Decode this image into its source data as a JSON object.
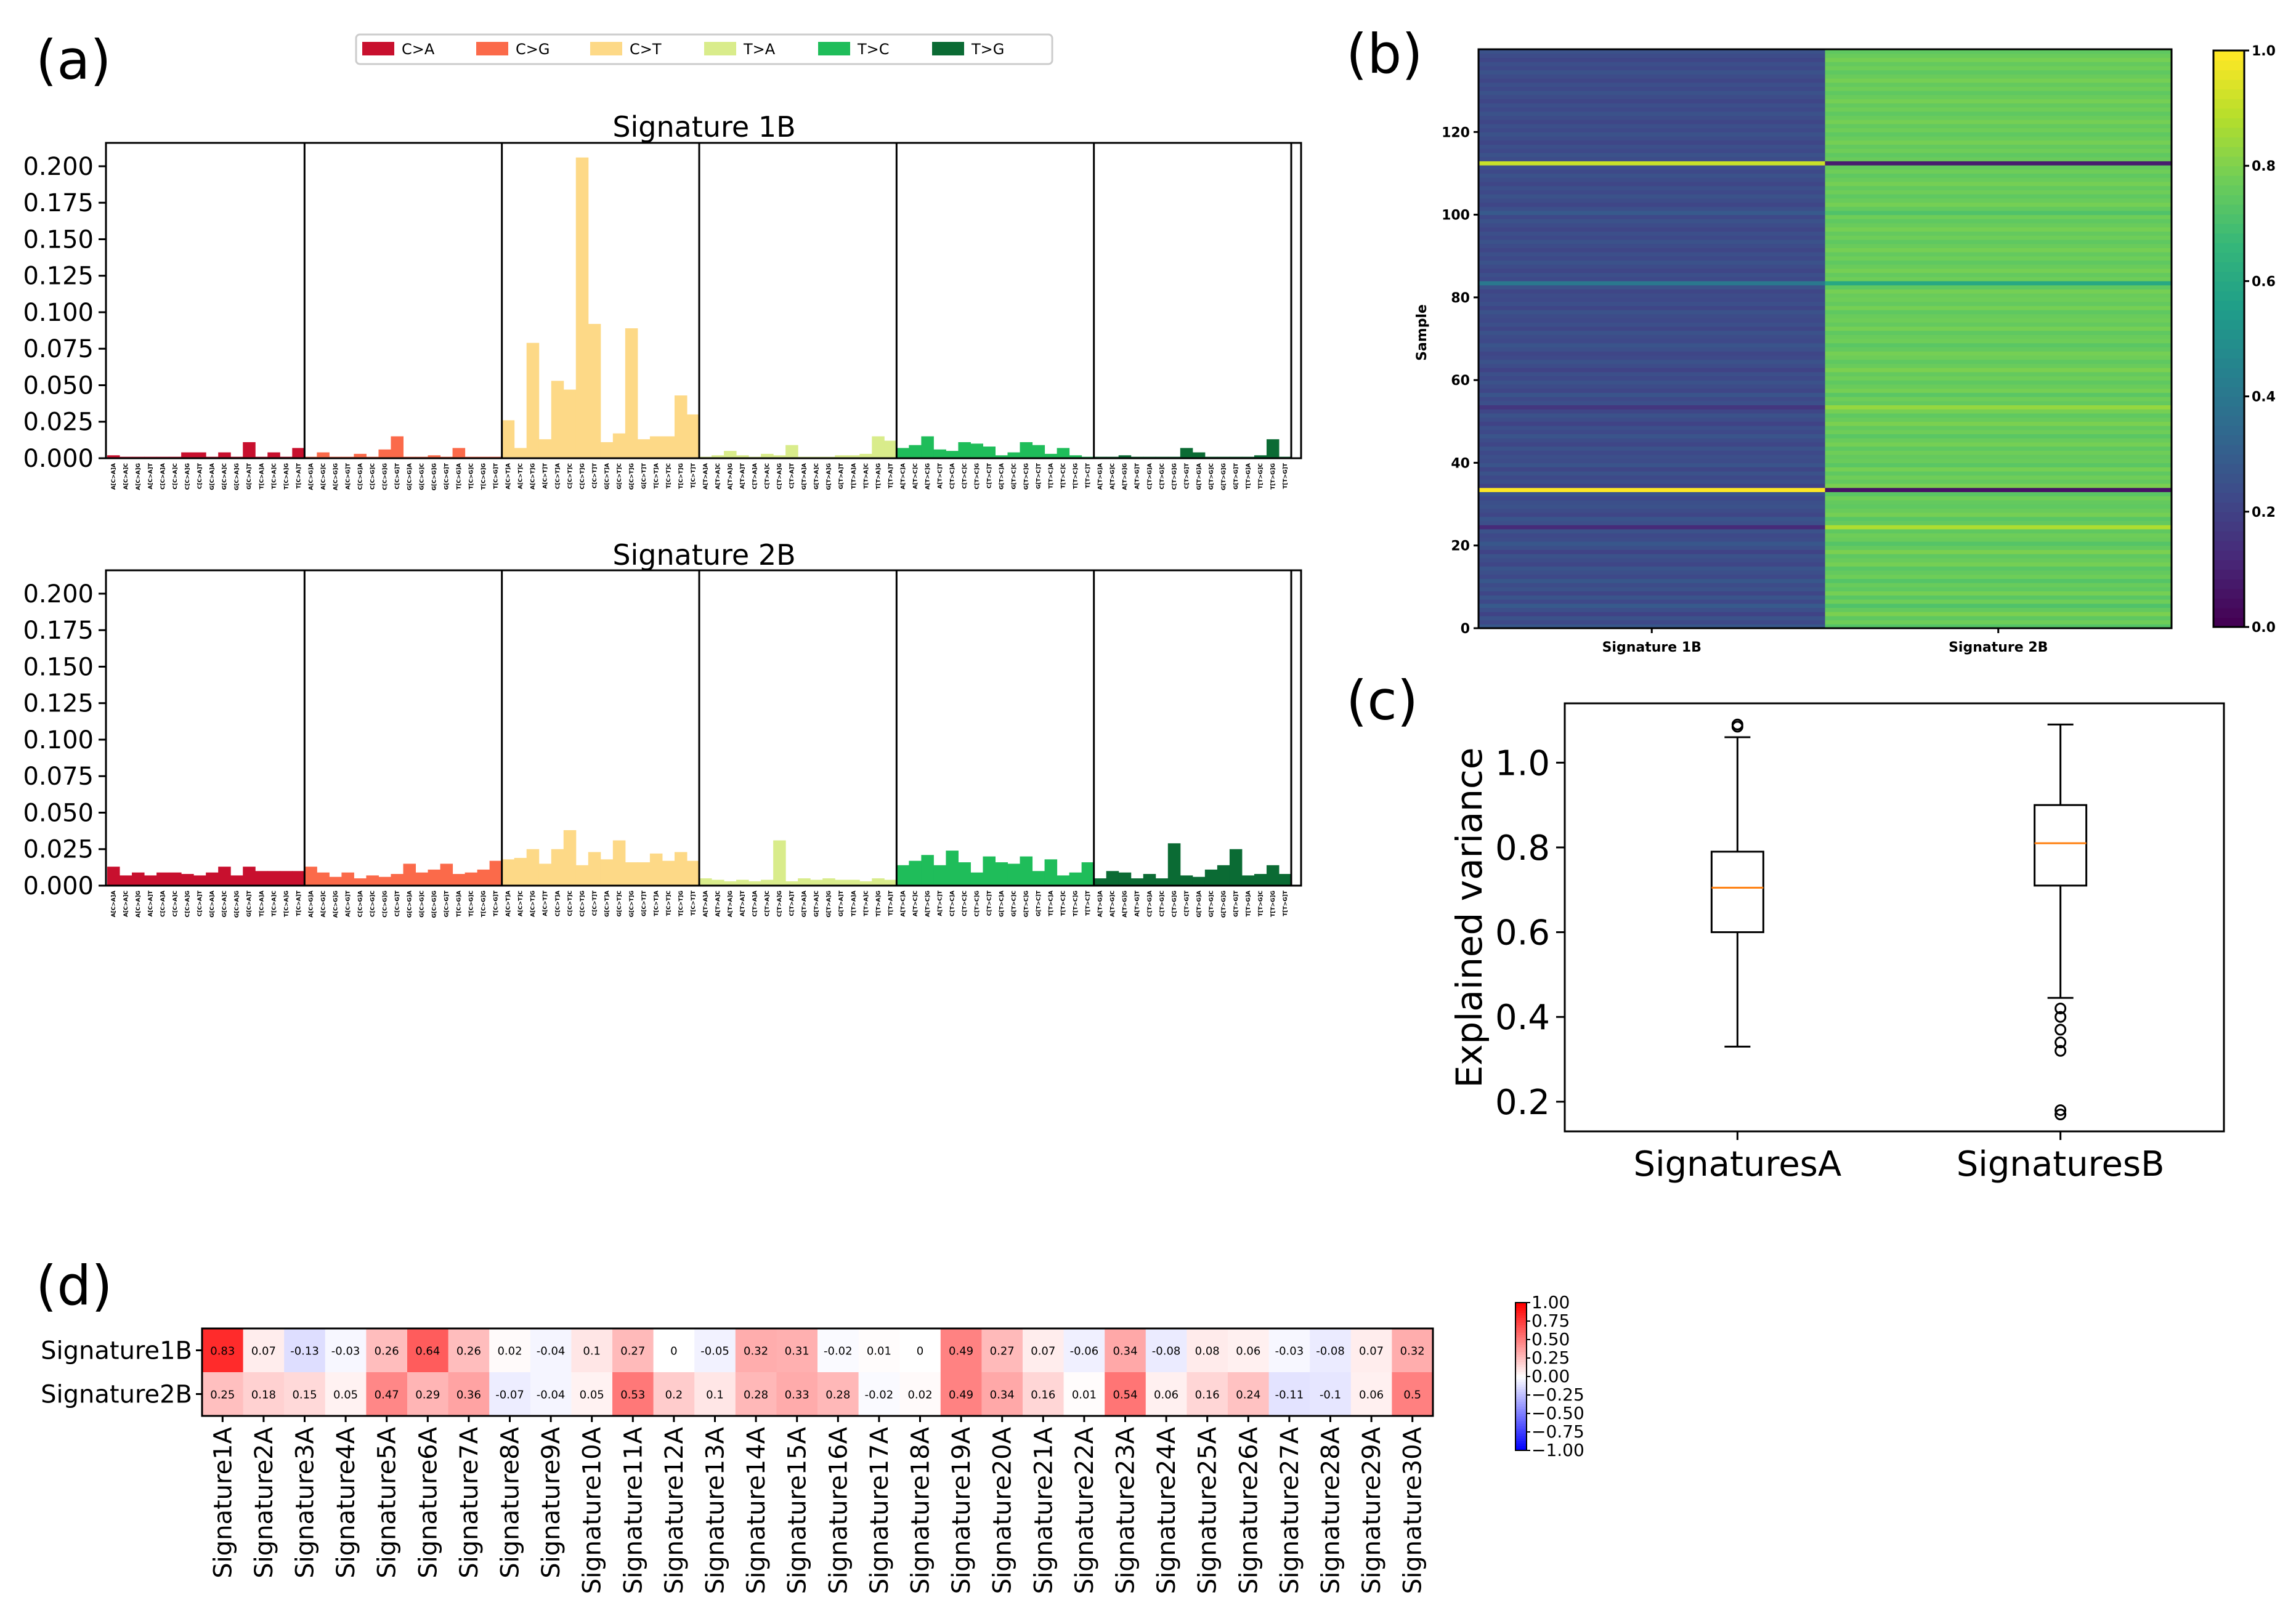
{
  "panels": {
    "a": "(a)",
    "b": "(b)",
    "c": "(c)",
    "d": "(d)"
  },
  "colors": {
    "C>A": "#c8102e",
    "C>G": "#fb6a4a",
    "C>T": "#fdd987",
    "T>A": "#d9ec8b",
    "T>C": "#1fbd5a",
    "T>G": "#0b6b34",
    "median": "#ff7f0e"
  },
  "legend": {
    "entries": [
      "C>A",
      "C>G",
      "C>T",
      "T>A",
      "T>C",
      "T>G"
    ]
  },
  "chart_data": [
    {
      "id": "a",
      "type": "bar",
      "mutation_types": [
        "C>A",
        "C>G",
        "C>T",
        "T>A",
        "T>C",
        "T>G"
      ],
      "contexts": [
        "A[X]A",
        "A[X]C",
        "A[X]G",
        "A[X]T",
        "C[X]A",
        "C[X]C",
        "C[X]G",
        "C[X]T",
        "G[X]A",
        "G[X]C",
        "G[X]G",
        "G[X]T",
        "T[X]A",
        "T[X]C",
        "T[X]G",
        "T[X]T"
      ],
      "yticks": [
        "0.000",
        "0.025",
        "0.050",
        "0.075",
        "0.100",
        "0.125",
        "0.150",
        "0.175",
        "0.200"
      ],
      "ylim": [
        0,
        0.216
      ],
      "series": [
        {
          "name": "Signature 1B",
          "values": [
            0.002,
            0.001,
            0.001,
            0.001,
            0.001,
            0.001,
            0.004,
            0.004,
            0.001,
            0.004,
            0.001,
            0.011,
            0.001,
            0.004,
            0.001,
            0.007,
            0.001,
            0.004,
            0.001,
            0.001,
            0.003,
            0.001,
            0.006,
            0.015,
            0.001,
            0.001,
            0.002,
            0.001,
            0.007,
            0.001,
            0.001,
            0.001,
            0.026,
            0.007,
            0.079,
            0.013,
            0.053,
            0.047,
            0.206,
            0.092,
            0.011,
            0.017,
            0.089,
            0.013,
            0.015,
            0.015,
            0.043,
            0.03,
            0.001,
            0.002,
            0.005,
            0.002,
            0.001,
            0.003,
            0.002,
            0.009,
            0.001,
            0.001,
            0.001,
            0.002,
            0.002,
            0.003,
            0.015,
            0.012,
            0.007,
            0.009,
            0.015,
            0.006,
            0.005,
            0.011,
            0.01,
            0.008,
            0.002,
            0.004,
            0.011,
            0.009,
            0.003,
            0.007,
            0.002,
            0.001,
            0.001,
            0.001,
            0.002,
            0.001,
            0.001,
            0.001,
            0.001,
            0.007,
            0.004,
            0.001,
            0.001,
            0.001,
            0.001,
            0.002,
            0.013,
            0.001
          ]
        },
        {
          "name": "Signature 2B",
          "values": [
            0.013,
            0.007,
            0.009,
            0.007,
            0.009,
            0.009,
            0.008,
            0.007,
            0.009,
            0.013,
            0.007,
            0.013,
            0.01,
            0.01,
            0.01,
            0.01,
            0.013,
            0.009,
            0.006,
            0.009,
            0.005,
            0.007,
            0.006,
            0.008,
            0.015,
            0.009,
            0.011,
            0.015,
            0.008,
            0.009,
            0.011,
            0.017,
            0.018,
            0.019,
            0.025,
            0.015,
            0.025,
            0.038,
            0.014,
            0.023,
            0.018,
            0.031,
            0.016,
            0.016,
            0.022,
            0.017,
            0.023,
            0.017,
            0.005,
            0.004,
            0.003,
            0.004,
            0.003,
            0.004,
            0.031,
            0.003,
            0.005,
            0.004,
            0.005,
            0.004,
            0.004,
            0.003,
            0.005,
            0.004,
            0.014,
            0.017,
            0.021,
            0.014,
            0.024,
            0.016,
            0.009,
            0.02,
            0.016,
            0.015,
            0.02,
            0.01,
            0.018,
            0.007,
            0.009,
            0.016,
            0.005,
            0.01,
            0.009,
            0.005,
            0.008,
            0.005,
            0.029,
            0.007,
            0.006,
            0.011,
            0.014,
            0.025,
            0.007,
            0.008,
            0.014,
            0.008
          ]
        }
      ]
    },
    {
      "id": "b",
      "type": "heatmap",
      "ylabel": "Sample",
      "xticks": [
        "Signature 1B",
        "Signature 2B"
      ],
      "yticks": [
        "0",
        "20",
        "40",
        "60",
        "80",
        "100",
        "120"
      ],
      "n_samples": 140,
      "colorbar_ticks": [
        "0.0",
        "0.2",
        "0.4",
        "0.6",
        "0.8",
        "1.0"
      ],
      "sig1_values": [
        0.27,
        0.22,
        0.25,
        0.2,
        0.24,
        0.28,
        0.22,
        0.26,
        0.21,
        0.25,
        0.23,
        0.27,
        0.22,
        0.24,
        0.26,
        0.21,
        0.23,
        0.25,
        0.2,
        0.24,
        0.27,
        0.23,
        0.22,
        0.25,
        0.12,
        0.24,
        0.26,
        0.21,
        0.23,
        0.25,
        0.24,
        0.22,
        0.26,
        1.0,
        0.2,
        0.24,
        0.22,
        0.25,
        0.21,
        0.26,
        0.23,
        0.24,
        0.22,
        0.25,
        0.21,
        0.23,
        0.26,
        0.22,
        0.24,
        0.2,
        0.23,
        0.25,
        0.21,
        0.16,
        0.24,
        0.22,
        0.26,
        0.21,
        0.23,
        0.25,
        0.22,
        0.24,
        0.2,
        0.23,
        0.25,
        0.22,
        0.21,
        0.24,
        0.26,
        0.22,
        0.23,
        0.25,
        0.21,
        0.24,
        0.22,
        0.23,
        0.25,
        0.21,
        0.24,
        0.22,
        0.23,
        0.21,
        0.25,
        0.4,
        0.22,
        0.24,
        0.21,
        0.23,
        0.25,
        0.22,
        0.24,
        0.21,
        0.23,
        0.25,
        0.22,
        0.24,
        0.21,
        0.23,
        0.25,
        0.22,
        0.28,
        0.24,
        0.21,
        0.23,
        0.25,
        0.22,
        0.24,
        0.21,
        0.23,
        0.25,
        0.22,
        0.24,
        0.92,
        0.23,
        0.25,
        0.22,
        0.24,
        0.21,
        0.23,
        0.25,
        0.22,
        0.24,
        0.21,
        0.23,
        0.25,
        0.22,
        0.24,
        0.21,
        0.23,
        0.25,
        0.22,
        0.24,
        0.21,
        0.23,
        0.25,
        0.22,
        0.24,
        0.21,
        0.23,
        0.25
      ],
      "sig2_values": [
        0.73,
        0.78,
        0.75,
        0.8,
        0.76,
        0.72,
        0.78,
        0.74,
        0.79,
        0.75,
        0.77,
        0.73,
        0.78,
        0.76,
        0.74,
        0.79,
        0.77,
        0.75,
        0.8,
        0.76,
        0.73,
        0.77,
        0.78,
        0.75,
        0.88,
        0.76,
        0.74,
        0.79,
        0.77,
        0.75,
        0.76,
        0.78,
        0.74,
        0.05,
        0.8,
        0.76,
        0.78,
        0.75,
        0.79,
        0.74,
        0.77,
        0.76,
        0.78,
        0.75,
        0.79,
        0.77,
        0.74,
        0.78,
        0.76,
        0.8,
        0.77,
        0.75,
        0.79,
        0.84,
        0.76,
        0.78,
        0.74,
        0.79,
        0.77,
        0.75,
        0.78,
        0.76,
        0.8,
        0.77,
        0.75,
        0.78,
        0.79,
        0.76,
        0.74,
        0.78,
        0.77,
        0.75,
        0.79,
        0.76,
        0.78,
        0.77,
        0.75,
        0.79,
        0.76,
        0.78,
        0.77,
        0.79,
        0.75,
        0.6,
        0.78,
        0.76,
        0.79,
        0.77,
        0.75,
        0.78,
        0.76,
        0.79,
        0.77,
        0.75,
        0.78,
        0.76,
        0.79,
        0.77,
        0.75,
        0.78,
        0.72,
        0.76,
        0.79,
        0.77,
        0.75,
        0.78,
        0.76,
        0.79,
        0.77,
        0.75,
        0.78,
        0.76,
        0.08,
        0.77,
        0.75,
        0.78,
        0.76,
        0.79,
        0.77,
        0.75,
        0.78,
        0.76,
        0.79,
        0.77,
        0.75,
        0.78,
        0.76,
        0.79,
        0.77,
        0.75,
        0.78,
        0.76,
        0.79,
        0.77,
        0.75,
        0.78,
        0.76,
        0.79,
        0.77,
        0.75
      ]
    },
    {
      "id": "c",
      "type": "box",
      "ylabel": "Explained variance",
      "categories": [
        "SignaturesA",
        "SignaturesB"
      ],
      "yticks": [
        "0.2",
        "0.4",
        "0.6",
        "0.8",
        "1.0"
      ],
      "ylim": [
        0.13,
        1.14
      ],
      "boxes": [
        {
          "name": "SignaturesA",
          "whislo": 0.33,
          "q1": 0.6,
          "med": 0.705,
          "q3": 0.79,
          "whishi": 1.06,
          "fliers": [
            1.085,
            1.09
          ]
        },
        {
          "name": "SignaturesB",
          "whislo": 0.445,
          "q1": 0.71,
          "med": 0.81,
          "q3": 0.9,
          "whishi": 1.09,
          "fliers": [
            0.42,
            0.4,
            0.37,
            0.34,
            0.32,
            0.18,
            0.17
          ]
        }
      ]
    },
    {
      "id": "d",
      "type": "heatmap",
      "rows": [
        "Signature1B",
        "Signature2B"
      ],
      "columns": [
        "Signature1A",
        "Signature2A",
        "Signature3A",
        "Signature4A",
        "Signature5A",
        "Signature6A",
        "Signature7A",
        "Signature8A",
        "Signature9A",
        "Signature10A",
        "Signature11A",
        "Signature12A",
        "Signature13A",
        "Signature14A",
        "Signature15A",
        "Signature16A",
        "Signature17A",
        "Signature18A",
        "Signature19A",
        "Signature20A",
        "Signature21A",
        "Signature22A",
        "Signature23A",
        "Signature24A",
        "Signature25A",
        "Signature26A",
        "Signature27A",
        "Signature28A",
        "Signature29A",
        "Signature30A"
      ],
      "values": [
        [
          0.83,
          0.07,
          -0.13,
          -0.03,
          0.26,
          0.64,
          0.26,
          0.02,
          -0.04,
          0.1,
          0.27,
          -0.0,
          -0.05,
          0.32,
          0.31,
          -0.02,
          0.01,
          -0.0,
          0.49,
          0.27,
          0.07,
          -0.06,
          0.34,
          -0.08,
          0.08,
          0.06,
          -0.03,
          -0.08,
          0.07,
          0.32
        ],
        [
          0.25,
          0.18,
          0.15,
          0.05,
          0.47,
          0.29,
          0.36,
          -0.07,
          -0.04,
          0.05,
          0.53,
          0.2,
          0.1,
          0.28,
          0.33,
          0.28,
          -0.02,
          0.02,
          0.49,
          0.34,
          0.16,
          0.01,
          0.54,
          0.06,
          0.16,
          0.24,
          -0.11,
          -0.1,
          0.06,
          0.5
        ]
      ],
      "colorbar_ticks": [
        "1.00",
        "0.75",
        "0.50",
        "0.25",
        "0.00",
        "−0.25",
        "−0.50",
        "−0.75",
        "−1.00"
      ],
      "vlim": [
        -1.0,
        1.0
      ]
    }
  ]
}
